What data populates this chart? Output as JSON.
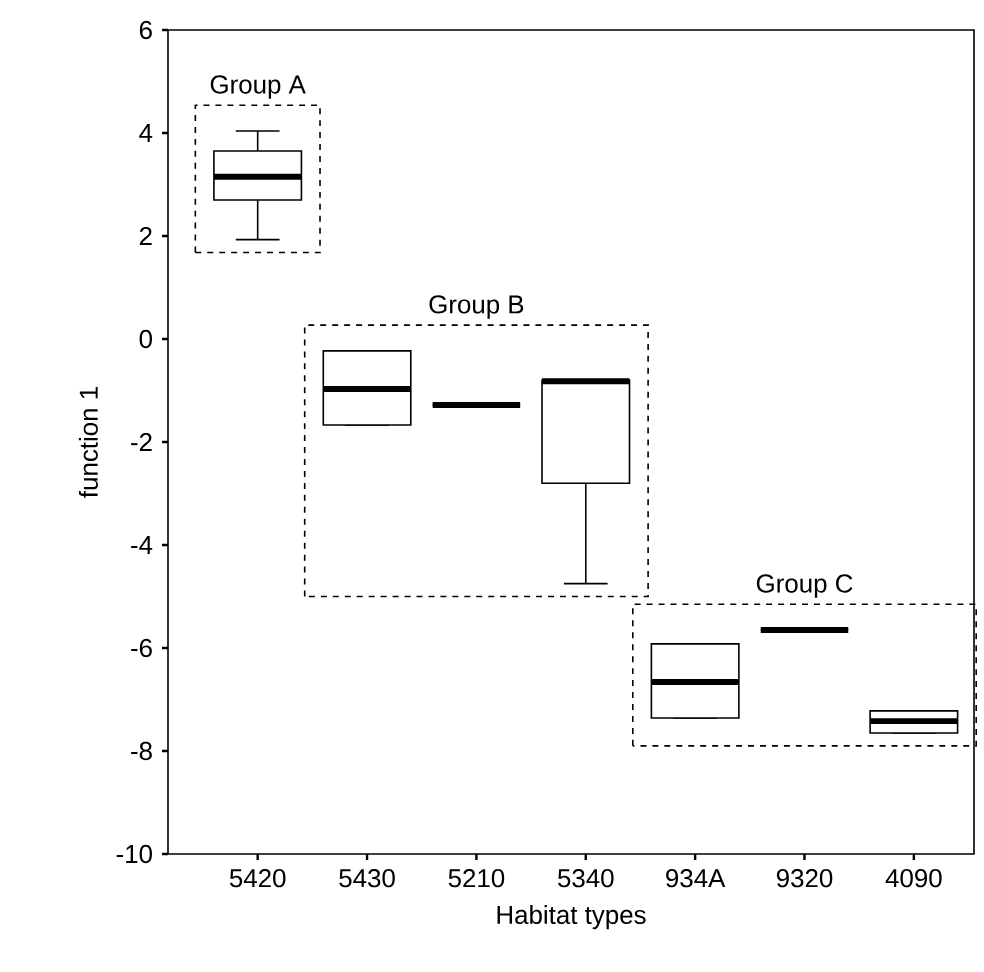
{
  "chart_data": {
    "type": "box",
    "xlabel": "Habitat types",
    "ylabel": "function 1",
    "categories": [
      "5420",
      "5430",
      "5210",
      "5340",
      "934A",
      "9320",
      "4090"
    ],
    "boxes": [
      {
        "low": 1.93,
        "q1": 2.7,
        "median": 3.15,
        "q3": 3.65,
        "high": 4.04
      },
      {
        "low": -1.67,
        "q1": -1.67,
        "median": -0.97,
        "q3": -0.23,
        "high": -0.23
      },
      {
        "low": -1.28,
        "q1": -1.28,
        "median": -1.28,
        "q3": -1.28,
        "high": -1.28
      },
      {
        "low": -4.75,
        "q1": -2.8,
        "median": -0.82,
        "q3": -0.8,
        "high": -0.8
      },
      {
        "low": -7.36,
        "q1": -7.36,
        "median": -6.66,
        "q3": -5.92,
        "high": -5.92
      },
      {
        "low": -5.65,
        "q1": -5.65,
        "median": -5.65,
        "q3": -5.65,
        "high": -5.65
      },
      {
        "low": -7.65,
        "q1": -7.65,
        "median": -7.42,
        "q3": -7.22,
        "high": -7.22
      }
    ],
    "ylim": [
      -10,
      6
    ],
    "yticks": [
      -10,
      -8,
      -6,
      -4,
      -2,
      0,
      2,
      4,
      6
    ],
    "grid": false,
    "annotations": [
      "Group A",
      "Group B",
      "Group C"
    ]
  }
}
